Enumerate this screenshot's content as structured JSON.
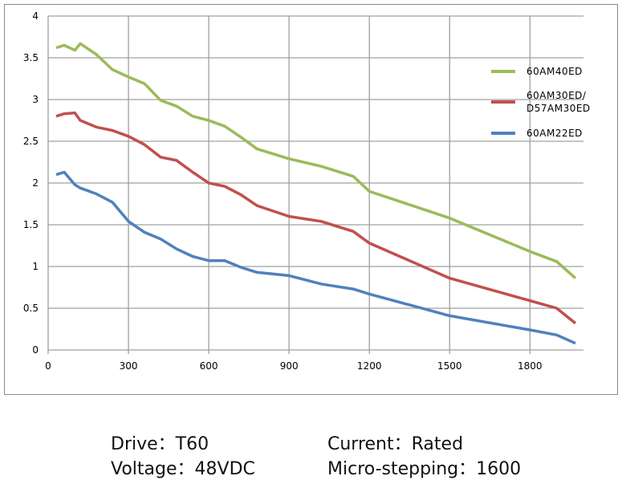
{
  "chart_data": {
    "type": "line",
    "title": "",
    "xlabel": "",
    "ylabel": "",
    "xlim": [
      0,
      2000
    ],
    "ylim": [
      0,
      4
    ],
    "grid": true,
    "legend_position": "top-right",
    "x_ticks": [
      "0",
      "300",
      "600",
      "900",
      "1200",
      "1500",
      "1800"
    ],
    "y_ticks": [
      "0",
      "0.5",
      "1",
      "1.5",
      "2",
      "2.5",
      "3",
      "3.5",
      "4"
    ],
    "x": [
      30,
      60,
      100,
      120,
      180,
      240,
      300,
      360,
      420,
      480,
      540,
      600,
      660,
      720,
      780,
      900,
      1020,
      1140,
      1200,
      1500,
      1800,
      1900,
      1970
    ],
    "series": [
      {
        "name_lines": [
          "60AM40ED"
        ],
        "color": "#9BBB59",
        "values": [
          3.62,
          3.65,
          3.59,
          3.67,
          3.54,
          3.36,
          3.27,
          3.19,
          2.99,
          2.92,
          2.8,
          2.75,
          2.68,
          2.55,
          2.41,
          2.29,
          2.2,
          2.08,
          1.9,
          1.58,
          1.18,
          1.06,
          0.86
        ]
      },
      {
        "name_lines": [
          "60AM30ED/",
          "D57AM30ED"
        ],
        "color": "#C0504D",
        "values": [
          2.8,
          2.83,
          2.84,
          2.75,
          2.67,
          2.63,
          2.56,
          2.46,
          2.31,
          2.27,
          2.13,
          2.0,
          1.96,
          1.86,
          1.73,
          1.6,
          1.54,
          1.42,
          1.28,
          0.86,
          0.59,
          0.5,
          0.32
        ]
      },
      {
        "name_lines": [
          "60AM22ED"
        ],
        "color": "#4F81BD",
        "values": [
          2.1,
          2.13,
          1.98,
          1.94,
          1.87,
          1.77,
          1.54,
          1.41,
          1.33,
          1.21,
          1.12,
          1.07,
          1.07,
          0.99,
          0.93,
          0.89,
          0.79,
          0.73,
          0.67,
          0.41,
          0.24,
          0.18,
          0.08
        ]
      }
    ]
  },
  "info": {
    "drive": "Drive：T60",
    "current": "Current：Rated",
    "voltage": "Voltage：48VDC",
    "microstepping": "Micro-stepping：1600"
  }
}
